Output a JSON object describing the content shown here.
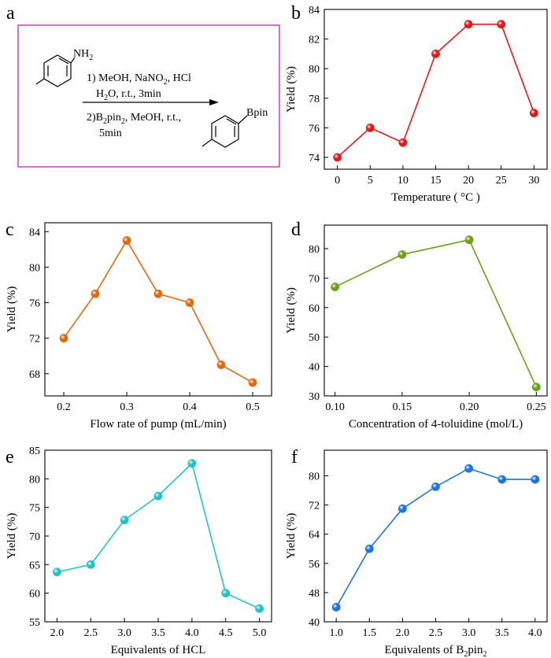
{
  "panels": {
    "a": {
      "letter": "a",
      "amine": "NH",
      "amine_sub": "2",
      "line1a": "1) MeOH, NaNO",
      "line1_sub": "2",
      "line1b": ", HCl",
      "line2a": "H",
      "line2_sub": "2",
      "line2b": "O, r.t., 3min",
      "line3a": "2)B",
      "line3_sub1": "2",
      "line3b": "pin",
      "line3_sub2": "2",
      "line3c": ", MeOH, r.t.,",
      "line4": "5min",
      "product": "Bpin",
      "border_color": "#c030c0"
    }
  },
  "chart_data": [
    {
      "id": "b",
      "letter": "b",
      "type": "line",
      "color": "#e31a1c",
      "x": [
        0,
        5,
        10,
        15,
        20,
        25,
        30
      ],
      "values": [
        74,
        76,
        75,
        81,
        83,
        83,
        77
      ],
      "xticks": [
        "0",
        "5",
        "10",
        "15",
        "20",
        "25",
        "30"
      ],
      "yticks": [
        "74",
        "76",
        "78",
        "80",
        "82",
        "84"
      ],
      "xlim": [
        -2,
        32
      ],
      "ylim": [
        73.2,
        84
      ],
      "xlabel": "Temperature ( °C )",
      "ylabel": "Yield (%)"
    },
    {
      "id": "c",
      "letter": "c",
      "type": "line",
      "color": "#e06a10",
      "x": [
        0.2,
        0.25,
        0.3,
        0.35,
        0.4,
        0.45,
        0.5
      ],
      "values": [
        72,
        77,
        83,
        77,
        76,
        69,
        67
      ],
      "xticks": [
        "0.2",
        "0.3",
        "0.4",
        "0.5"
      ],
      "yticks": [
        "68",
        "72",
        "76",
        "80",
        "84"
      ],
      "xlim": [
        0.17,
        0.53
      ],
      "ylim": [
        65.5,
        85
      ],
      "xlabel": "Flow rate of pump (mL/min)",
      "ylabel": "Yield (%)"
    },
    {
      "id": "d",
      "letter": "d",
      "type": "line",
      "color": "#6aa11a",
      "x": [
        0.1,
        0.15,
        0.2,
        0.25
      ],
      "values": [
        67,
        78,
        83,
        33
      ],
      "xticks": [
        "0.10",
        "0.15",
        "0.20",
        "0.25"
      ],
      "yticks": [
        "30",
        "40",
        "50",
        "60",
        "70",
        "80"
      ],
      "xlim": [
        0.092,
        0.258
      ],
      "ylim": [
        30,
        88
      ],
      "xlabel": "Concentration of 4-toluidine (mol/L)",
      "ylabel": "Yield (%)"
    },
    {
      "id": "e",
      "letter": "e",
      "type": "line",
      "color": "#22c4c4",
      "x": [
        2.0,
        2.5,
        3.0,
        3.5,
        4.0,
        4.5,
        5.0
      ],
      "values": [
        63.7,
        65,
        72.8,
        77,
        82.7,
        60,
        57.3
      ],
      "xticks": [
        "2.0",
        "2.5",
        "3.0",
        "3.5",
        "4.0",
        "4.5",
        "5.0"
      ],
      "yticks": [
        "55",
        "60",
        "65",
        "70",
        "75",
        "80",
        "85"
      ],
      "xlim": [
        1.82,
        5.18
      ],
      "ylim": [
        55,
        85
      ],
      "xlabel": "Equivalents of HCL",
      "ylabel": "Yield (%)"
    },
    {
      "id": "f",
      "letter": "f",
      "type": "line",
      "color": "#1f74e0",
      "x": [
        1.0,
        1.5,
        2.0,
        2.5,
        3.0,
        3.5,
        4.0
      ],
      "values": [
        44,
        60,
        71,
        77,
        82,
        79,
        79
      ],
      "xticks": [
        "1.0",
        "1.5",
        "2.0",
        "2.5",
        "3.0",
        "3.5",
        "4.0"
      ],
      "yticks": [
        "40",
        "48",
        "56",
        "64",
        "72",
        "80"
      ],
      "xlim": [
        0.82,
        4.18
      ],
      "ylim": [
        40,
        87
      ],
      "xlabel": "Equivalents of B",
      "xlabel_sub": "2",
      "xlabel_tail": "pin",
      "xlabel_sub2": "2",
      "ylabel": "Yield (%)"
    }
  ]
}
